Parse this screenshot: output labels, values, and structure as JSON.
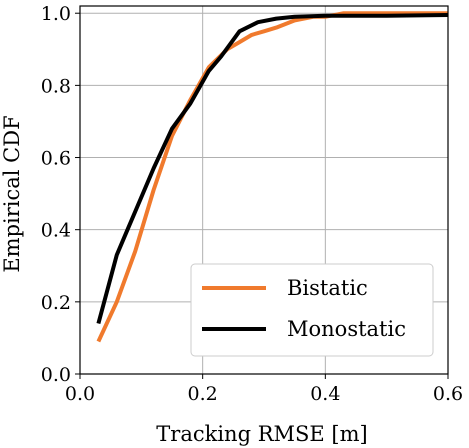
{
  "chart_data": {
    "type": "line",
    "xlabel": "Tracking RMSE [m]",
    "ylabel": "Empirical CDF",
    "xlim": [
      0.0,
      0.6
    ],
    "ylim": [
      0.0,
      1.02
    ],
    "xticks": [
      0.0,
      0.2,
      0.4,
      0.6
    ],
    "xtick_labels": [
      "0.0",
      "0.2",
      "0.4",
      "0.6"
    ],
    "yticks": [
      0.0,
      0.2,
      0.4,
      0.6,
      0.8,
      1.0
    ],
    "ytick_labels": [
      "0.0",
      "0.2",
      "0.4",
      "0.6",
      "0.8",
      "1.0"
    ],
    "grid": true,
    "legend_position": "bottom-right",
    "series": [
      {
        "name": "Bistatic",
        "color": "#f07a2d",
        "x": [
          0.03,
          0.06,
          0.09,
          0.12,
          0.15,
          0.18,
          0.21,
          0.24,
          0.26,
          0.28,
          0.3,
          0.32,
          0.35,
          0.38,
          0.4,
          0.43,
          0.5,
          0.6
        ],
        "y": [
          0.09,
          0.2,
          0.34,
          0.51,
          0.66,
          0.76,
          0.85,
          0.9,
          0.92,
          0.94,
          0.95,
          0.96,
          0.98,
          0.99,
          0.99,
          1.0,
          1.0,
          1.0
        ]
      },
      {
        "name": "Monostatic",
        "color": "#000000",
        "x": [
          0.03,
          0.06,
          0.09,
          0.12,
          0.15,
          0.18,
          0.21,
          0.23,
          0.26,
          0.29,
          0.32,
          0.35,
          0.4,
          0.5,
          0.6
        ],
        "y": [
          0.14,
          0.33,
          0.45,
          0.57,
          0.68,
          0.75,
          0.84,
          0.88,
          0.95,
          0.975,
          0.985,
          0.99,
          0.993,
          0.993,
          0.995
        ]
      }
    ]
  }
}
